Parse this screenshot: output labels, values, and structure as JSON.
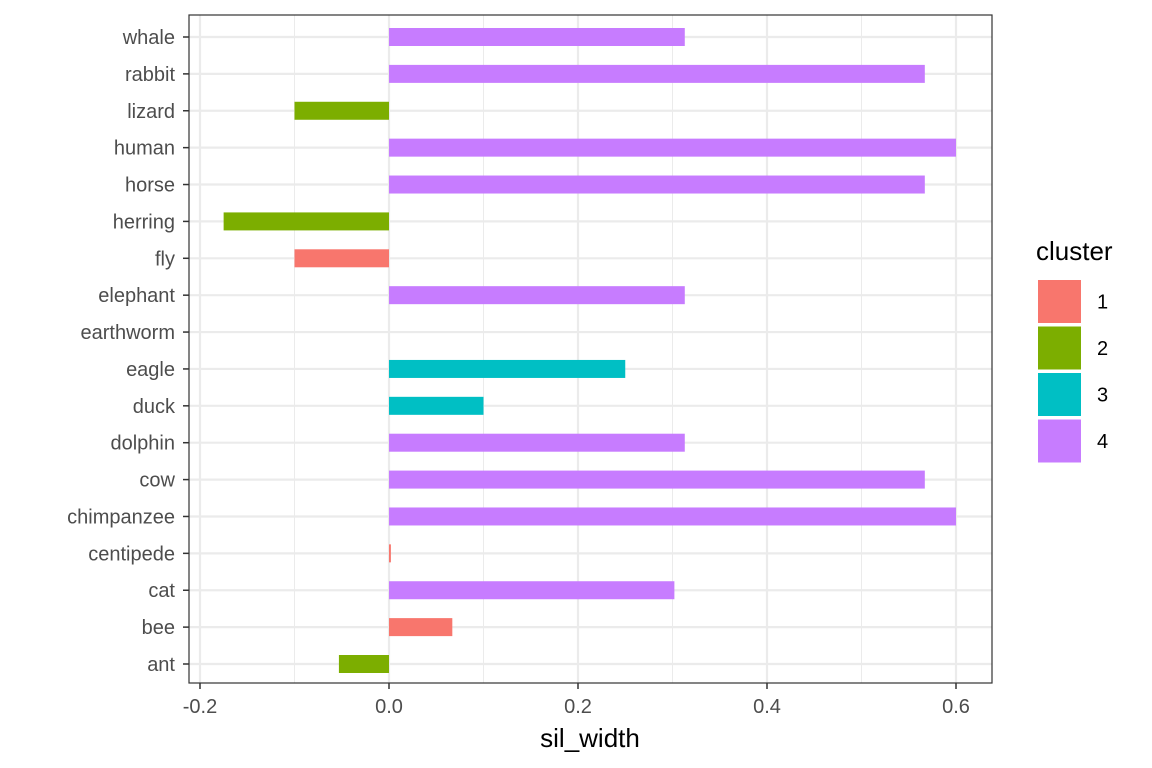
{
  "chart_data": {
    "type": "bar",
    "orientation": "horizontal",
    "xlabel": "sil_width",
    "ylabel": "",
    "xlim": [
      -0.2,
      0.6
    ],
    "x_ticks": [
      "-0.2",
      "0.0",
      "0.2",
      "0.4",
      "0.6"
    ],
    "x_tick_values": [
      -0.2,
      0.0,
      0.2,
      0.4,
      0.6
    ],
    "grid": true,
    "legend": {
      "title": "cluster",
      "position": "right",
      "entries": [
        {
          "label": "1",
          "color": "#F8766D"
        },
        {
          "label": "2",
          "color": "#7CAE00"
        },
        {
          "label": "3",
          "color": "#00BFC4"
        },
        {
          "label": "4",
          "color": "#C77CFF"
        }
      ]
    },
    "categories": [
      "whale",
      "rabbit",
      "lizard",
      "human",
      "horse",
      "herring",
      "fly",
      "elephant",
      "earthworm",
      "eagle",
      "duck",
      "dolphin",
      "cow",
      "chimpanzee",
      "centipede",
      "cat",
      "bee",
      "ant"
    ],
    "values": [
      0.313,
      0.567,
      -0.1,
      0.6,
      0.567,
      -0.175,
      -0.1,
      0.313,
      0.0,
      0.25,
      0.1,
      0.313,
      0.567,
      0.6,
      0.002,
      0.302,
      0.067,
      -0.053
    ],
    "clusters": [
      "4",
      "4",
      "2",
      "4",
      "4",
      "2",
      "1",
      "4",
      "2",
      "3",
      "3",
      "4",
      "4",
      "4",
      "1",
      "4",
      "1",
      "2"
    ]
  }
}
